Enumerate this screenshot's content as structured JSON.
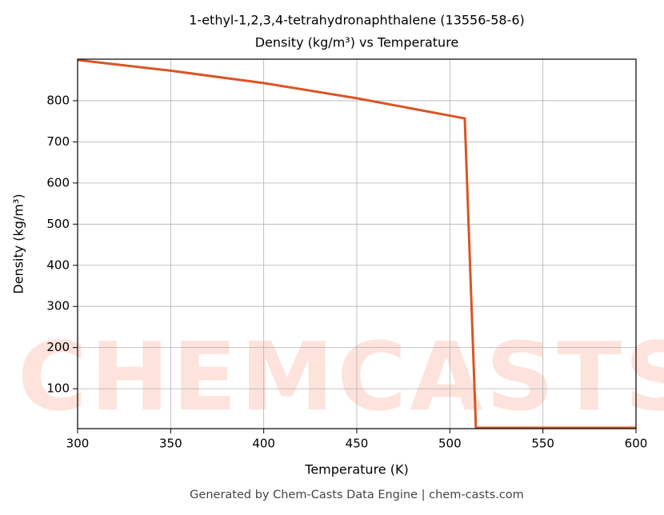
{
  "chart_data": {
    "type": "line",
    "title": "1-ethyl-1,2,3,4-tetrahydronaphthalene (13556-58-6)",
    "subtitle": "Density (kg/m³) vs Temperature",
    "x_label": "Temperature (K)",
    "y_label": "Density (kg/m³)",
    "footer": "Generated by Chem-Casts Data Engine | chem-casts.com",
    "watermark": "CHEMCASTS",
    "x": [
      300,
      350,
      400,
      450,
      508,
      514,
      600
    ],
    "series": [
      {
        "name": "Density",
        "color": "#d95525",
        "values": [
          899,
          873,
          843,
          806,
          757,
          5,
          5
        ]
      }
    ],
    "xlim": [
      300,
      600
    ],
    "ylim": [
      3,
      901
    ],
    "xticks": [
      300,
      350,
      400,
      450,
      500,
      550,
      600
    ],
    "yticks": [
      100,
      200,
      300,
      400,
      500,
      600,
      700,
      800
    ],
    "grid": true
  }
}
